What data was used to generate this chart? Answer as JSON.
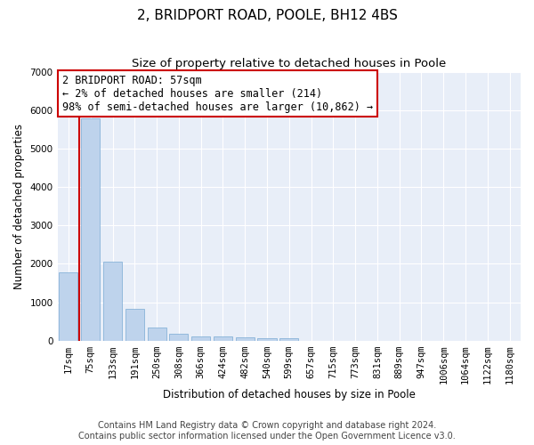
{
  "title": "2, BRIDPORT ROAD, POOLE, BH12 4BS",
  "subtitle": "Size of property relative to detached houses in Poole",
  "xlabel": "Distribution of detached houses by size in Poole",
  "ylabel": "Number of detached properties",
  "categories": [
    "17sqm",
    "75sqm",
    "133sqm",
    "191sqm",
    "250sqm",
    "308sqm",
    "366sqm",
    "424sqm",
    "482sqm",
    "540sqm",
    "599sqm",
    "657sqm",
    "715sqm",
    "773sqm",
    "831sqm",
    "889sqm",
    "947sqm",
    "1006sqm",
    "1064sqm",
    "1122sqm",
    "1180sqm"
  ],
  "values": [
    1780,
    5780,
    2060,
    820,
    340,
    190,
    120,
    110,
    90,
    75,
    65,
    0,
    0,
    0,
    0,
    0,
    0,
    0,
    0,
    0,
    0
  ],
  "bar_color": "#bed3ec",
  "bar_edge_color": "#7aaad4",
  "property_line_x": 0.5,
  "annotation_title": "2 BRIDPORT ROAD: 57sqm",
  "annotation_line1": "← 2% of detached houses are smaller (214)",
  "annotation_line2": "98% of semi-detached houses are larger (10,862) →",
  "annotation_box_facecolor": "#ffffff",
  "annotation_border_color": "#cc0000",
  "vline_color": "#cc0000",
  "ylim": [
    0,
    7000
  ],
  "yticks": [
    0,
    1000,
    2000,
    3000,
    4000,
    5000,
    6000,
    7000
  ],
  "background_color": "#e8eef8",
  "footnote1": "Contains HM Land Registry data © Crown copyright and database right 2024.",
  "footnote2": "Contains public sector information licensed under the Open Government Licence v3.0.",
  "title_fontsize": 11,
  "subtitle_fontsize": 9.5,
  "annotation_fontsize": 8.5,
  "axis_label_fontsize": 8.5,
  "tick_fontsize": 7.5,
  "footnote_fontsize": 7
}
